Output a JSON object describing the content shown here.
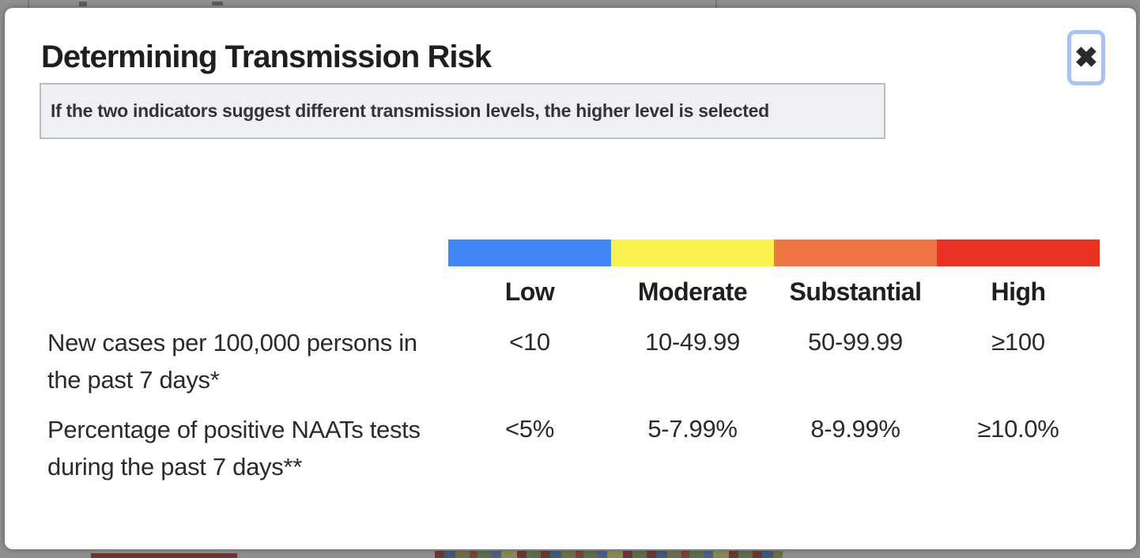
{
  "modal": {
    "title": "Determining Transmission Risk",
    "note": "If the two indicators suggest different transmission levels, the higher level is selected",
    "close_icon": "✖",
    "table": {
      "levels": [
        {
          "label": "Low",
          "color": "#4285f4"
        },
        {
          "label": "Moderate",
          "color": "#fbf04e"
        },
        {
          "label": "Substantial",
          "color": "#ed7642"
        },
        {
          "label": "High",
          "color": "#e93223"
        }
      ],
      "rows": [
        {
          "label": "New cases per 100,000 persons in the past 7 days*",
          "values": [
            "<10",
            "10-49.99",
            "50-99.99",
            "≥100"
          ]
        },
        {
          "label": "Percentage of positive NAATs tests during the past 7 days**",
          "values": [
            "<5%",
            "5-7.99%",
            "8-9.99%",
            "≥10.0%"
          ]
        }
      ]
    }
  }
}
